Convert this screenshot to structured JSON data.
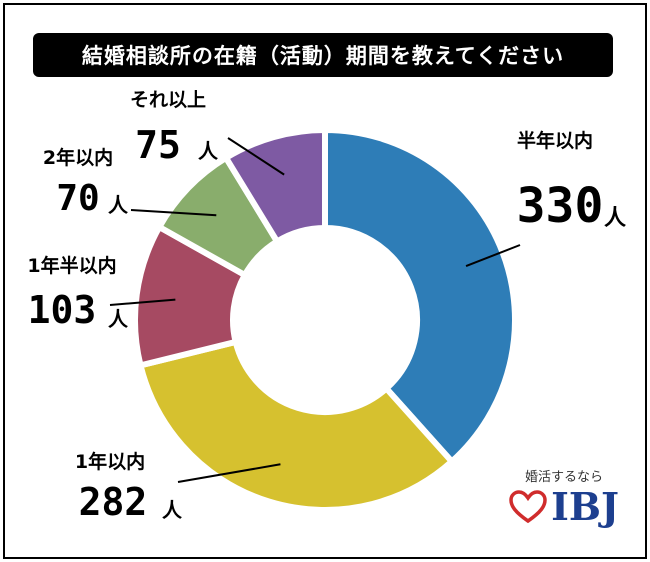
{
  "title": "結婚相談所の在籍（活動）期間を教えてください",
  "unit": "人",
  "brand": {
    "tagline": "婚活するなら",
    "name": "IBJ",
    "heart_color": "#d02c2c"
  },
  "chart_data": {
    "type": "pie",
    "title": "結婚相談所の在籍（活動）期間を教えてください",
    "donut": true,
    "start": "12 o'clock, clockwise",
    "categories": [
      "半年以内",
      "1年以内",
      "1年半以内",
      "2年以内",
      "それ以上"
    ],
    "values": [
      330,
      282,
      103,
      70,
      75
    ],
    "colors": [
      "#2e7db7",
      "#d6c12f",
      "#a64a62",
      "#89ad6c",
      "#7e5aa3"
    ],
    "legend": "labels beside slices"
  }
}
